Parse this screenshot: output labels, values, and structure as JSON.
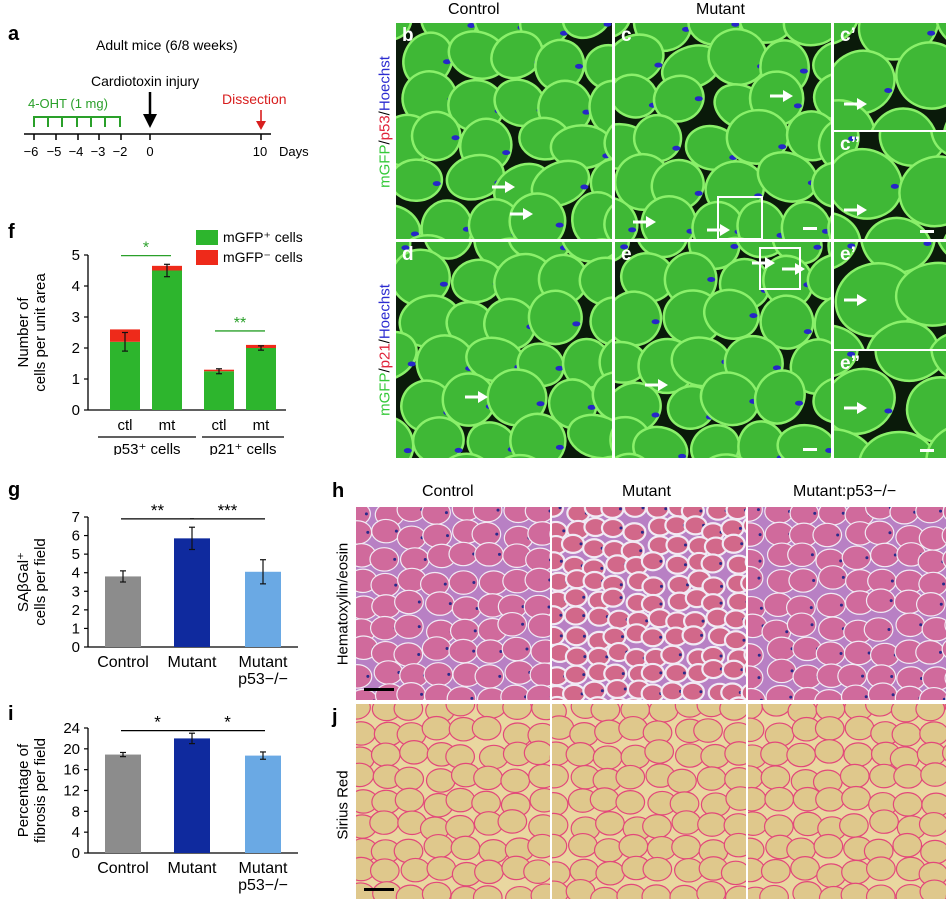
{
  "panels": {
    "a": {
      "label": "a",
      "title": "Adult mice (6/8 weeks)",
      "injury": "Cardiotoxin injury",
      "ohtLabel": "4-OHT (1 mg)",
      "dissection": "Dissection",
      "ticks": [
        "−6",
        "−5",
        "−4",
        "−3",
        "−2",
        "0",
        "10"
      ],
      "daysLabel": "Days",
      "colors": {
        "oht": "#2aa02a",
        "dissection": "#d81e1e",
        "axis": "#000000"
      }
    },
    "micrographs": {
      "headers": {
        "control": "Control",
        "mutant": "Mutant"
      },
      "labels": {
        "b": "b",
        "c": "c",
        "c1": "c’",
        "c2": "c”",
        "d": "d",
        "e": "e",
        "e1": "e’",
        "e2": "e”"
      },
      "stain_bc": {
        "part1": "mGFP",
        "sep1": "/",
        "part2": "p53",
        "sep2": "/",
        "part3": "Hoechst"
      },
      "stain_de": {
        "part1": "mGFP",
        "sep1": "/",
        "part2": "p21",
        "sep2": "/",
        "part3": "Hoechst"
      },
      "colors": {
        "green": "#35c93a",
        "red": "#e0233a",
        "blue": "#2b2bd0"
      }
    },
    "h": {
      "label": "h",
      "headers": [
        "Control",
        "Mutant",
        "Mutant:p53−/−"
      ],
      "rowLabel": "Hematoxylin/eosin"
    },
    "j": {
      "label": "j",
      "rowLabel": "Sirius Red"
    }
  },
  "chart_data": [
    {
      "panel": "f",
      "type": "bar",
      "stacked": true,
      "ylabel": "Number of\ncells per unit area",
      "ylim": [
        0,
        5
      ],
      "yticks": [
        "0",
        "1",
        "2",
        "3",
        "4",
        "5"
      ],
      "categories": [
        "ctl",
        "mt",
        "ctl",
        "mt"
      ],
      "groups": [
        {
          "label": "p53⁺ cells",
          "categories": [
            "ctl",
            "mt"
          ]
        },
        {
          "label": "p21⁺ cells",
          "categories": [
            "ctl",
            "mt"
          ]
        }
      ],
      "series": [
        {
          "name": "mGFP⁺ cells",
          "color": "#2db52d",
          "values": [
            2.2,
            4.5,
            1.25,
            2.0
          ]
        },
        {
          "name": "mGFP⁻ cells",
          "color": "#ee2a1a",
          "values": [
            0.4,
            0.15,
            0.05,
            0.1
          ]
        }
      ],
      "error": [
        0.3,
        0.2,
        0.08,
        0.07
      ],
      "significance": [
        {
          "text": "*",
          "color": "#2aa02a",
          "from": 0,
          "to": 1
        },
        {
          "text": "**",
          "color": "#2aa02a",
          "from": 2,
          "to": 3
        }
      ]
    },
    {
      "panel": "g",
      "type": "bar",
      "ylabel": "SAβGal⁺\ncells per field",
      "ylim": [
        0,
        7
      ],
      "yticks": [
        "0",
        "1",
        "2",
        "3",
        "4",
        "5",
        "6",
        "7"
      ],
      "categories": [
        "Control",
        "Mutant",
        "Mutant\np53−/−"
      ],
      "values": [
        3.8,
        5.85,
        4.05
      ],
      "error": [
        0.3,
        0.6,
        0.65
      ],
      "colors": [
        "#8c8c8c",
        "#0f2a9e",
        "#6aa9e4"
      ],
      "significance": [
        {
          "text": "**",
          "from": 0,
          "to": 1
        },
        {
          "text": "***",
          "from": 1,
          "to": 2
        }
      ]
    },
    {
      "panel": "i",
      "type": "bar",
      "ylabel": "Percentage of\nfibrosis per field",
      "ylim": [
        0,
        24
      ],
      "yticks": [
        "0",
        "4",
        "8",
        "12",
        "16",
        "20",
        "24"
      ],
      "categories": [
        "Control",
        "Mutant",
        "Mutant\np53−/−"
      ],
      "values": [
        18.9,
        22.0,
        18.7
      ],
      "error": [
        0.4,
        1.0,
        0.7
      ],
      "colors": [
        "#8c8c8c",
        "#0f2a9e",
        "#6aa9e4"
      ],
      "significance": [
        {
          "text": "*",
          "from": 0,
          "to": 1
        },
        {
          "text": "*",
          "from": 1,
          "to": 2
        }
      ]
    }
  ]
}
